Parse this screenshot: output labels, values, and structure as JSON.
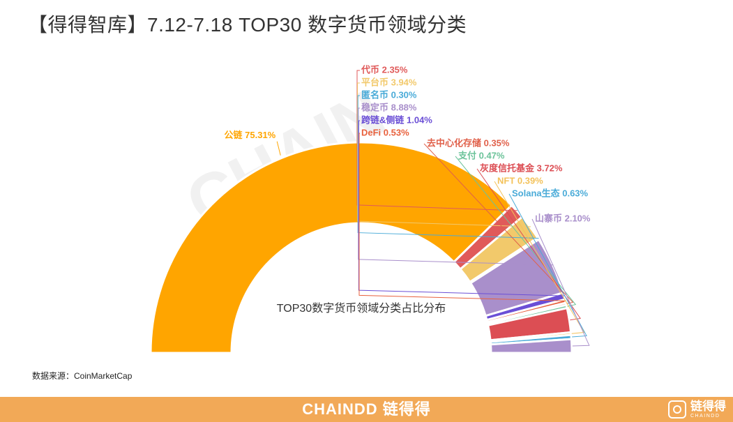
{
  "header": {
    "title": "【得得智库】7.12-7.18  TOP30 数字货币领域分类"
  },
  "watermark": "CHAIN",
  "source": "数据来源：CoinMarketCap",
  "footer": {
    "brand": "CHAINDD 链得得",
    "logo_cn": "链得得",
    "logo_en": "CHAINDD"
  },
  "chart_data": {
    "type": "pie",
    "subtype": "half-donut",
    "center_label": "TOP30数字货币领域分类占比分布",
    "legend": "none",
    "slices": [
      {
        "name": "公链",
        "value": 75.31,
        "label": "公链 75.31%",
        "color": "#ffa500"
      },
      {
        "name": "代币",
        "value": 2.35,
        "label": "代币 2.35%",
        "color": "#e05a5a"
      },
      {
        "name": "平台币",
        "value": 3.94,
        "label": "平台币 3.94%",
        "color": "#f2c96b"
      },
      {
        "name": "匿名币",
        "value": 0.3,
        "label": "匿名币 0.30%",
        "color": "#4aabd8"
      },
      {
        "name": "稳定币",
        "value": 8.88,
        "label": "稳定币 8.88%",
        "color": "#a98fcb"
      },
      {
        "name": "跨链&侧链",
        "value": 1.04,
        "label": "跨链&侧链 1.04%",
        "color": "#6b4fd6"
      },
      {
        "name": "DeFi",
        "value": 0.53,
        "label": "DeFi 0.53%",
        "color": "#e8613d"
      },
      {
        "name": "去中心化存储",
        "value": 0.35,
        "label": "去中心化存储 0.35%",
        "color": "#e0604a"
      },
      {
        "name": "支付",
        "value": 0.47,
        "label": "支付 0.47%",
        "color": "#6cc39a"
      },
      {
        "name": "灰度信托基金",
        "value": 3.72,
        "label": "灰度信托基金 3.72%",
        "color": "#dc4e54"
      },
      {
        "name": "NFT",
        "value": 0.39,
        "label": "NFT 0.39%",
        "color": "#f3c25a"
      },
      {
        "name": "Solana生态",
        "value": 0.63,
        "label": "Solana生态 0.63%",
        "color": "#4aabd8"
      },
      {
        "name": "山寨币",
        "value": 2.1,
        "label": "山寨币 2.10%",
        "color": "#a98fcb"
      }
    ]
  }
}
